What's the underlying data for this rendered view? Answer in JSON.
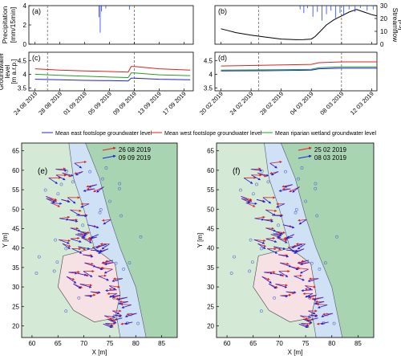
{
  "chart_data": [
    {
      "panel": "(a)",
      "type": "bar",
      "ylabel": "Precipitation [mm/15min]",
      "yticks": [
        0,
        2,
        4
      ],
      "ylim": [
        4,
        0
      ],
      "inverted": true,
      "xticks": [
        "24 08 2019",
        "28 08 2019",
        "01 09 2019",
        "05 09 2019",
        "09 09 2019",
        "13 09 2019",
        "17 09 2019"
      ],
      "x_days": [
        0,
        4,
        8,
        12,
        16,
        20,
        24
      ],
      "markers_days": [
        2,
        16
      ],
      "series": [
        {
          "color": "#1f3fff",
          "x_days": [
            10.3,
            10.5,
            10.7,
            11.4,
            15.2
          ],
          "values": [
            1.2,
            2.8,
            0.6,
            0.3,
            0.4
          ]
        }
      ]
    },
    {
      "panel": "(b)",
      "type": "line",
      "ylabel": "Streamflow [l/s]",
      "yticks": [
        0,
        10,
        20,
        30
      ],
      "ylim": [
        0,
        30
      ],
      "xticks": [
        "20 02 2019",
        "24 02 2019",
        "28 02 2019",
        "04 03 2019",
        "08 03 2019",
        "12 03 2019"
      ],
      "x_days": [
        0,
        4,
        8,
        12,
        16,
        20
      ],
      "markers_days": [
        5,
        16
      ],
      "series": [
        {
          "color": "#000000",
          "x_days": [
            0,
            1,
            2,
            4,
            6,
            8,
            10,
            11,
            12,
            12.5,
            13,
            14,
            15,
            16,
            17,
            18,
            19,
            20,
            20.7
          ],
          "values": [
            12,
            10.5,
            9,
            7,
            5.5,
            4,
            3.5,
            3.6,
            4,
            6,
            9,
            15,
            19,
            22,
            25,
            27,
            25,
            23,
            22
          ]
        },
        {
          "color": "#1f3fff",
          "bars": true,
          "x_days": [
            10.5,
            11,
            11.5,
            12.2,
            12.8,
            13.4,
            14,
            14.6,
            15.2,
            15.8,
            16.3,
            17,
            17.8,
            18.5,
            19.4,
            20.2
          ],
          "values": [
            3,
            6,
            2,
            9,
            5,
            12,
            7,
            4,
            10,
            6,
            8,
            3,
            5,
            2,
            4,
            3
          ]
        }
      ]
    },
    {
      "panel": "(c)",
      "type": "line",
      "ylabel": "Groundwater level [m a.r.p.]",
      "yticks": [
        3.5,
        4,
        4.5
      ],
      "ylim": [
        3.4,
        4.8
      ],
      "xticks": [
        "24 08 2019",
        "28 08 2019",
        "01 09 2019",
        "05 09 2019",
        "09 09 2019",
        "13 09 2019",
        "17 09 2019"
      ],
      "x_days": [
        0,
        4,
        8,
        12,
        16,
        20,
        24
      ],
      "markers_days": [
        2,
        16
      ],
      "series": [
        {
          "name": "Mean west footslope groundwater level",
          "color": "#e02020",
          "x_days": [
            0,
            4,
            8,
            12,
            15,
            15.5,
            16,
            20,
            25
          ],
          "values": [
            4.2,
            4.15,
            4.12,
            4.1,
            4.08,
            4.28,
            4.28,
            4.2,
            4.15
          ]
        },
        {
          "name": "Mean riparian wetland groundwater level",
          "color": "#20a020",
          "x_days": [
            0,
            4,
            8,
            12,
            15,
            15.5,
            16,
            20,
            25
          ],
          "values": [
            4.0,
            3.96,
            3.93,
            3.9,
            3.88,
            4.05,
            4.05,
            3.98,
            3.95
          ]
        },
        {
          "name": "Mean east footslope groundwater level",
          "color": "#2020e0",
          "x_days": [
            0,
            4,
            8,
            12,
            15,
            15.5,
            16,
            20,
            25
          ],
          "values": [
            3.82,
            3.8,
            3.78,
            3.77,
            3.76,
            3.86,
            3.86,
            3.82,
            3.8
          ]
        }
      ]
    },
    {
      "panel": "(d)",
      "type": "line",
      "yticks": [
        3.5,
        4,
        4.5
      ],
      "ylim": [
        3.4,
        4.8
      ],
      "xticks": [
        "20 02 2019",
        "24 02 2019",
        "28 02 2019",
        "04 03 2019",
        "08 03 2019",
        "12 03 2019"
      ],
      "x_days": [
        0,
        4,
        8,
        12,
        16,
        20
      ],
      "markers_days": [
        5,
        16
      ],
      "series": [
        {
          "name": "Mean west footslope groundwater level",
          "color": "#e02020",
          "x_days": [
            0,
            6,
            12,
            13,
            16,
            20.7
          ],
          "values": [
            4.3,
            4.33,
            4.36,
            4.42,
            4.45,
            4.45
          ]
        },
        {
          "name": "Mean riparian wetland groundwater level",
          "color": "#20a020",
          "x_days": [
            0,
            6,
            12,
            13,
            16,
            20.7
          ],
          "values": [
            4.15,
            4.16,
            4.18,
            4.24,
            4.27,
            4.27
          ]
        },
        {
          "name": "Mean east footslope groundwater level",
          "color": "#2020e0",
          "x_days": [
            0,
            6,
            12,
            13,
            16,
            20.7
          ],
          "values": [
            4.12,
            4.13,
            4.15,
            4.2,
            4.22,
            4.22
          ]
        }
      ]
    },
    {
      "panel": "(e)",
      "type": "scatter",
      "xlabel": "X [m]",
      "ylabel": "Y [m]",
      "xticks": [
        60,
        65,
        70,
        75,
        80,
        85
      ],
      "yticks": [
        20,
        25,
        30,
        35,
        40,
        45,
        50,
        55,
        60,
        65
      ],
      "xlim": [
        58,
        88
      ],
      "ylim": [
        17,
        67
      ],
      "arrow_legend": [
        {
          "label": "26 08 2019",
          "color": "#e02020"
        },
        {
          "label": "09 09 2019",
          "color": "#2020e0"
        }
      ]
    },
    {
      "panel": "(f)",
      "type": "scatter",
      "xlabel": "X [m]",
      "ylabel": "Y [m]",
      "xticks": [
        60,
        65,
        70,
        75,
        80,
        85
      ],
      "yticks": [
        20,
        25,
        30,
        35,
        40,
        45,
        50,
        55,
        60,
        65
      ],
      "xlim": [
        58,
        88
      ],
      "ylim": [
        17,
        67
      ],
      "arrow_legend": [
        {
          "label": "25 02 2019",
          "color": "#e02020"
        },
        {
          "label": "08 03 2019",
          "color": "#2020e0"
        }
      ]
    }
  ],
  "legend": [
    {
      "label": "Mean east footslope groundwater level",
      "color": "#2020e0"
    },
    {
      "label": "Mean west footslope groundwater level",
      "color": "#e02020"
    },
    {
      "label": "Mean riparian wetland groundwater level",
      "color": "#20a020"
    }
  ],
  "colors": {
    "zone_dark": "#a9d4b2",
    "zone_light": "#d4ead7",
    "stream": "#cfe2f5",
    "wetland": "#f6e1e4"
  }
}
